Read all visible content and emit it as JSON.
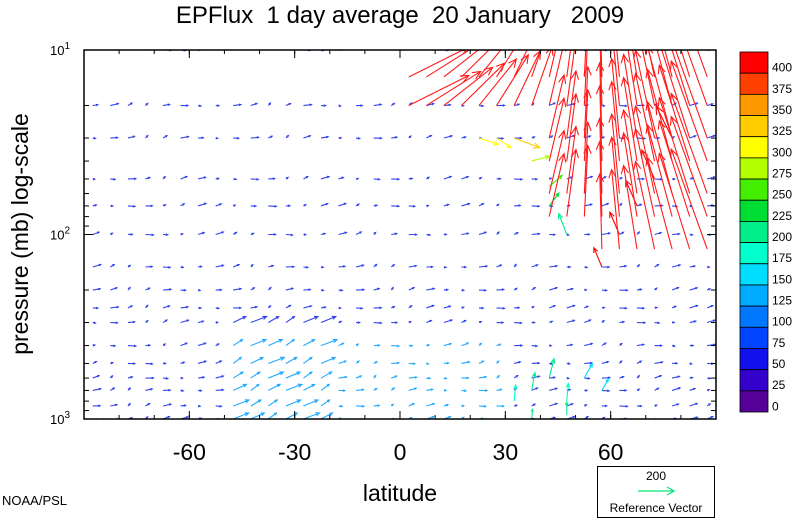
{
  "chart_data": {
    "type": "quiver",
    "title": "EPFlux  1 day average  20 January   2009",
    "xlabel": "latitude",
    "ylabel": "pressure (mb)  log-scale",
    "xlim": [
      -90,
      90
    ],
    "ylim_mb": [
      1000,
      10
    ],
    "y_scale": "log",
    "x_ticks": [
      -60,
      -30,
      0,
      30,
      60
    ],
    "y_tick_labels": [
      {
        "mantissa": "10",
        "exponent": "1",
        "value": 10
      },
      {
        "mantissa": "10",
        "exponent": "2",
        "value": 100
      },
      {
        "mantissa": "10",
        "exponent": "3",
        "value": 1000
      }
    ],
    "colorbar": {
      "labels": [
        "400",
        "375",
        "350",
        "325",
        "300",
        "275",
        "250",
        "225",
        "200",
        "175",
        "150",
        "125",
        "100",
        "75",
        "50",
        "25",
        "0"
      ],
      "colors": [
        "#ff0000",
        "#ff4000",
        "#ff9900",
        "#ffcc00",
        "#ffff00",
        "#b3ff00",
        "#44ee00",
        "#00dd33",
        "#00ee88",
        "#00ffcc",
        "#00ddff",
        "#00aaff",
        "#0077ff",
        "#0044ff",
        "#1111ee",
        "#3300cc",
        "#550099"
      ]
    },
    "reference_vector": {
      "value": "200",
      "label": "Reference Vector"
    },
    "credit": "NOAA/PSL",
    "levels_mb": [
      1000,
      850,
      700,
      600,
      500,
      400,
      300,
      250,
      200,
      150,
      100,
      70,
      50,
      30,
      20,
      10
    ],
    "lat_grid": [
      -87.5,
      -82.5,
      -77.5,
      -72.5,
      -67.5,
      -62.5,
      -57.5,
      -52.5,
      -47.5,
      -42.5,
      -37.5,
      -32.5,
      -27.5,
      -22.5,
      -17.5,
      -12.5,
      -7.5,
      -2.5,
      2.5,
      7.5,
      12.5,
      17.5,
      22.5,
      27.5,
      32.5,
      37.5,
      42.5,
      47.5,
      52.5,
      57.5,
      62.5,
      67.5,
      72.5,
      77.5,
      82.5,
      87.5
    ],
    "notable_vectors": [
      {
        "lat": 22.5,
        "p": 30,
        "u": 120,
        "v": -40,
        "magnitude": 300
      },
      {
        "lat": 27.5,
        "p": 30,
        "u": 90,
        "v": -60,
        "magnitude": 310
      },
      {
        "lat": 32.5,
        "p": 30,
        "u": 160,
        "v": -60,
        "magnitude": 330
      },
      {
        "lat": 37.5,
        "p": 40,
        "u": 110,
        "v": 30,
        "magnitude": 270
      },
      {
        "lat": 42.5,
        "p": 55,
        "u": 80,
        "v": 70,
        "magnitude": 240
      },
      {
        "lat": 42.5,
        "p": 70,
        "u": 60,
        "v": 80,
        "magnitude": 230
      },
      {
        "lat": 47.5,
        "p": 100,
        "u": -50,
        "v": 130,
        "magnitude": 210
      },
      {
        "lat": 32.5,
        "p": 800,
        "u": 10,
        "v": 100,
        "magnitude": 180
      },
      {
        "lat": 37.5,
        "p": 700,
        "u": 20,
        "v": 110,
        "magnitude": 190
      },
      {
        "lat": 42.5,
        "p": 600,
        "u": 30,
        "v": 120,
        "magnitude": 190
      },
      {
        "lat": 47.5,
        "p": 800,
        "u": 10,
        "v": 110,
        "magnitude": 185
      },
      {
        "lat": 47.5,
        "p": 950,
        "u": 0,
        "v": 80,
        "magnitude": 200
      },
      {
        "lat": 37.5,
        "p": 1000,
        "u": 5,
        "v": 60,
        "magnitude": 200
      },
      {
        "lat": 52.5,
        "p": 600,
        "u": 50,
        "v": 90,
        "magnitude": 160
      },
      {
        "lat": 57.5,
        "p": 700,
        "u": 40,
        "v": 70,
        "magnitude": 140
      },
      {
        "lat": 57.5,
        "p": 150,
        "u": -50,
        "v": 120,
        "magnitude": 400
      },
      {
        "lat": 62.5,
        "p": 100,
        "u": -60,
        "v": 140,
        "magnitude": 400
      },
      {
        "lat": 67.5,
        "p": 70,
        "u": -70,
        "v": 160,
        "magnitude": 400
      },
      {
        "lat": 72.5,
        "p": 50,
        "u": -80,
        "v": 180,
        "magnitude": 400
      },
      {
        "lat": 77.5,
        "p": 30,
        "u": -100,
        "v": 200,
        "magnitude": 400
      }
    ]
  }
}
